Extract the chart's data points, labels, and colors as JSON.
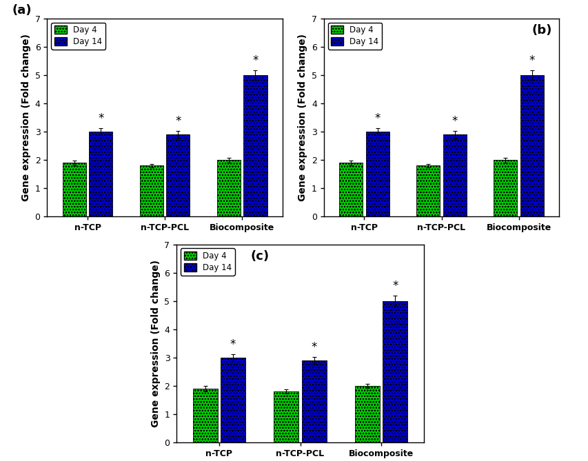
{
  "categories": [
    "n-TCP",
    "n-TCP-PCL",
    "Biocomposite"
  ],
  "day4_values": [
    1.9,
    1.8,
    2.0
  ],
  "day14_values": [
    3.0,
    2.9,
    5.0
  ],
  "day4_errors": [
    0.09,
    0.07,
    0.08
  ],
  "day14_errors": [
    0.13,
    0.13,
    0.18
  ],
  "green_color": "#00cc00",
  "blue_color": "#0000cc",
  "ylim": [
    0,
    7
  ],
  "yticks": [
    0,
    1,
    2,
    3,
    4,
    5,
    6,
    7
  ],
  "ylabel": "Gene expression (Fold change)",
  "legend_labels": [
    "Day 4",
    "Day 14"
  ],
  "panel_labels": [
    "(a)",
    "(b)",
    "(c)"
  ],
  "bar_width": 0.32,
  "background_color": "#ffffff",
  "tick_fontsize": 9,
  "label_fontsize": 10,
  "panel_label_fontsize": 13
}
